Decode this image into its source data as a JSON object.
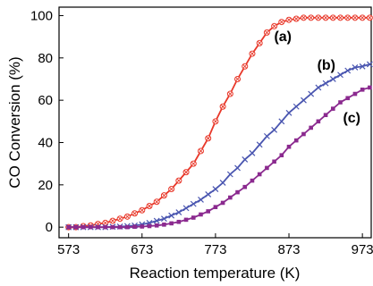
{
  "chart_data": {
    "type": "line",
    "title": "",
    "xlabel": "Reaction temperature (K)",
    "ylabel": "CO Conversion (%)",
    "xlim": [
      560,
      985
    ],
    "ylim": [
      -5,
      104
    ],
    "xticks": [
      573,
      673,
      773,
      873,
      973
    ],
    "yticks": [
      0,
      20,
      40,
      60,
      80,
      100
    ],
    "grid": false,
    "x": [
      573,
      583,
      593,
      603,
      613,
      623,
      633,
      643,
      653,
      663,
      673,
      683,
      693,
      703,
      713,
      723,
      733,
      743,
      753,
      763,
      773,
      783,
      793,
      803,
      813,
      823,
      833,
      843,
      853,
      863,
      873,
      883,
      893,
      903,
      913,
      923,
      933,
      943,
      953,
      963,
      973,
      983
    ],
    "series": [
      {
        "name": "(a)",
        "color": "#e8382a",
        "marker": "circle-x",
        "values": [
          0,
          0,
          0.5,
          0.8,
          1.5,
          2,
          3,
          4,
          5,
          6.5,
          8,
          10,
          12,
          15,
          18,
          22,
          26,
          30,
          36,
          42,
          50,
          57,
          63,
          70,
          76,
          82,
          87,
          92,
          95,
          97,
          98,
          98.5,
          99,
          99,
          99,
          99,
          99,
          99,
          99,
          99,
          99,
          99
        ]
      },
      {
        "name": "(b)",
        "color": "#4a56b0",
        "marker": "x",
        "values": [
          0,
          0,
          0,
          0,
          0,
          0,
          0.2,
          0.3,
          0.5,
          0.8,
          1.3,
          2,
          3,
          4,
          5.5,
          7,
          9,
          11,
          13,
          15.5,
          18,
          21,
          25,
          28,
          32,
          35,
          39,
          43,
          46,
          50,
          54,
          57,
          60,
          63,
          66,
          68,
          70,
          72,
          74,
          75.5,
          76,
          77
        ]
      },
      {
        "name": "(c)",
        "color": "#8b2a8f",
        "marker": "square",
        "values": [
          0,
          0,
          0,
          0,
          0,
          0,
          0,
          0,
          0,
          0.2,
          0.3,
          0.5,
          0.8,
          1.2,
          1.8,
          2.5,
          3.5,
          4.5,
          6,
          7.5,
          9.5,
          11.5,
          14,
          16.5,
          19,
          22,
          25,
          28,
          31,
          34,
          38,
          41,
          44,
          47,
          50,
          53,
          56,
          59,
          61,
          63,
          65,
          66
        ]
      }
    ]
  }
}
